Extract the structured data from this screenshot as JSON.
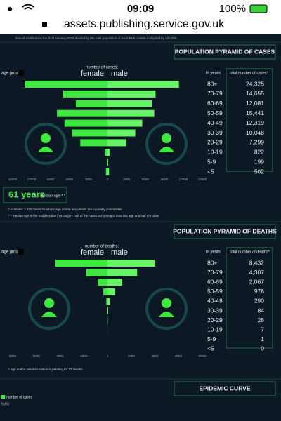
{
  "status_bar": {
    "time": "09:09",
    "battery": "100%"
  },
  "url": "assets.publishing.service.gov.uk",
  "intro_note": "time of death since the 31st January 2020 divided by the total population of each PHE Centre multiplied by 100,000.",
  "chart_data": [
    {
      "type": "pyramid",
      "title": "POPULATION PYRAMID OF CASES",
      "left_header": "age group",
      "right_header": "in years",
      "value_axis_label": "number of cases:",
      "categories": [
        "80+",
        "70-79",
        "60-69",
        "50-59",
        "40-49",
        "30-39",
        "20-29",
        "10-19",
        "5-9",
        "<5"
      ],
      "series": [
        {
          "name": "female",
          "color": "#3fe83f",
          "values": [
            13000,
            7000,
            5000,
            8000,
            6800,
            5600,
            4300,
            450,
            100,
            250
          ]
        },
        {
          "name": "male",
          "color": "#66f466",
          "values": [
            11300,
            7600,
            7000,
            7400,
            5500,
            4400,
            3000,
            370,
            100,
            250
          ]
        }
      ],
      "totals": {
        "title": "total number of cases*",
        "values": [
          24325,
          14655,
          12081,
          15441,
          12319,
          10048,
          7299,
          822,
          199,
          502
        ],
        "value_labels": [
          "24,325",
          "14,655",
          "12,081",
          "15,441",
          "12,319",
          "10,048",
          "7,299",
          "822",
          "199",
          "502"
        ]
      },
      "xlim": [
        0,
        15000
      ],
      "xticks": [
        0,
        3000,
        6000,
        9000,
        12000,
        15000
      ],
      "median": "61 years",
      "median_label": "median age * *",
      "notes": [
        "* excludes 1,440 cases for whom age and/or sex details are currently unavailable",
        "* * median age is the middle value in a range - half of the cases are younger than this age and half are older"
      ]
    },
    {
      "type": "pyramid",
      "title": "POPULATION PYRAMID OF DEATHS",
      "left_header": "age group",
      "right_header": "in years",
      "value_axis_label": "number of deaths:",
      "categories": [
        "80+",
        "70-79",
        "60-69",
        "50-59",
        "40-49",
        "30-39",
        "20-29",
        "10-19",
        "5-9",
        "<5"
      ],
      "series": [
        {
          "name": "female",
          "color": "#3fe83f",
          "values": [
            4400,
            1800,
            800,
            350,
            100,
            30,
            10,
            3,
            0,
            0
          ]
        },
        {
          "name": "male",
          "color": "#66f466",
          "values": [
            4000,
            2500,
            1250,
            630,
            190,
            54,
            18,
            4,
            1,
            0
          ]
        }
      ],
      "totals": {
        "title": "total number of deaths*",
        "values": [
          8432,
          4307,
          2067,
          978,
          290,
          84,
          28,
          7,
          1,
          0
        ],
        "value_labels": [
          "8,432",
          "4,307",
          "2,067",
          "978",
          "290",
          "84",
          "28",
          "7",
          "1",
          "0"
        ]
      },
      "xlim": [
        0,
        8000
      ],
      "xticks": [
        0,
        2000,
        4000,
        6000,
        8000
      ],
      "notes": [
        "* age and/or sex information is pending for 77 deaths"
      ]
    },
    {
      "type": "bar",
      "title": "EPIDEMIC CURVE",
      "series": [
        {
          "name": "number of cases",
          "color": "#3fe83f"
        }
      ],
      "yticks": [
        5000
      ]
    }
  ]
}
